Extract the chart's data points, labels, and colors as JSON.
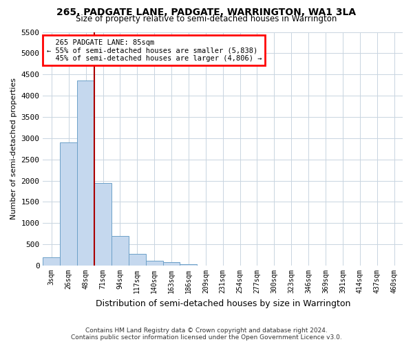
{
  "title": "265, PADGATE LANE, PADGATE, WARRINGTON, WA1 3LA",
  "subtitle": "Size of property relative to semi-detached houses in Warrington",
  "xlabel": "Distribution of semi-detached houses by size in Warrington",
  "ylabel": "Number of semi-detached properties",
  "footer_line1": "Contains HM Land Registry data © Crown copyright and database right 2024.",
  "footer_line2": "Contains public sector information licensed under the Open Government Licence v3.0.",
  "bar_color": "#c5d8ee",
  "bar_edge_color": "#6ca0c8",
  "grid_color": "#c8d4e0",
  "vline_color": "#aa0000",
  "categories": [
    "3sqm",
    "26sqm",
    "48sqm",
    "71sqm",
    "94sqm",
    "117sqm",
    "140sqm",
    "163sqm",
    "186sqm",
    "209sqm",
    "231sqm",
    "254sqm",
    "277sqm",
    "300sqm",
    "323sqm",
    "346sqm",
    "369sqm",
    "391sqm",
    "414sqm",
    "437sqm",
    "460sqm"
  ],
  "values": [
    200,
    2900,
    4350,
    1950,
    700,
    280,
    110,
    80,
    40,
    0,
    0,
    0,
    0,
    0,
    0,
    0,
    0,
    0,
    0,
    0,
    0
  ],
  "property_label": "265 PADGATE LANE: 85sqm",
  "pct_smaller": "55% of semi-detached houses are smaller (5,838)",
  "pct_larger": "45% of semi-detached houses are larger (4,806)",
  "vline_x_index": 2.5,
  "ylim": [
    0,
    5500
  ],
  "yticks": [
    0,
    500,
    1000,
    1500,
    2000,
    2500,
    3000,
    3500,
    4000,
    4500,
    5000,
    5500
  ],
  "background_color": "#ffffff",
  "figsize": [
    6.0,
    5.0
  ],
  "dpi": 100
}
